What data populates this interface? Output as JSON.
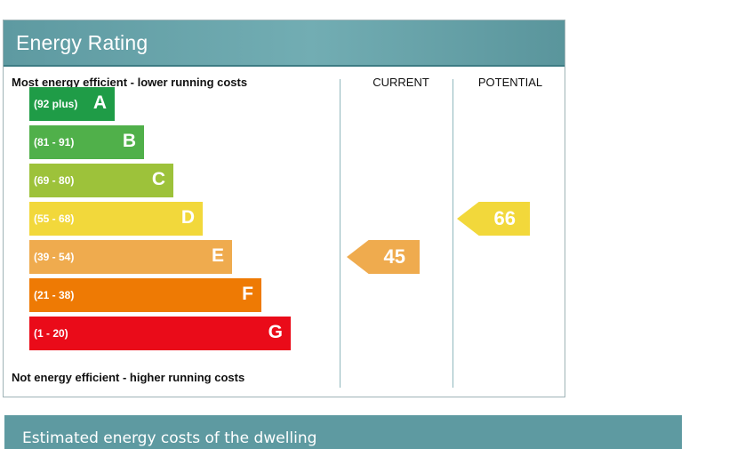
{
  "panel": {
    "title": "Energy Rating",
    "top_caption": "Most energy efficient - lower running costs",
    "bottom_caption": "Not energy efficient - higher running costs",
    "col_current": "CURRENT",
    "col_potential": "POTENTIAL"
  },
  "costs_section": {
    "title": "Estimated energy costs of the dwelling"
  },
  "colors": {
    "header": "#5e9aa1",
    "A": "#1f9c47",
    "B": "#50b04a",
    "C": "#9dc23a",
    "D": "#f2d83b",
    "E": "#efab4e",
    "F": "#ee7a04",
    "G": "#ea0b19"
  },
  "chart_data": {
    "type": "energy-rating",
    "bands": [
      {
        "range": "(92 plus)",
        "letter": "A",
        "min": 92,
        "max": null,
        "color": "#1f9c47"
      },
      {
        "range": "(81 - 91)",
        "letter": "B",
        "min": 81,
        "max": 91,
        "color": "#50b04a"
      },
      {
        "range": "(69 - 80)",
        "letter": "C",
        "min": 69,
        "max": 80,
        "color": "#9dc23a"
      },
      {
        "range": "(55 - 68)",
        "letter": "D",
        "min": 55,
        "max": 68,
        "color": "#f2d83b"
      },
      {
        "range": "(39 - 54)",
        "letter": "E",
        "min": 39,
        "max": 54,
        "color": "#efab4e"
      },
      {
        "range": "(21 - 38)",
        "letter": "F",
        "min": 21,
        "max": 38,
        "color": "#ee7a04"
      },
      {
        "range": "(1 - 20)",
        "letter": "G",
        "min": 1,
        "max": 20,
        "color": "#ea0b19"
      }
    ],
    "current": {
      "value": 45,
      "band": "E"
    },
    "potential": {
      "value": 66,
      "band": "D"
    }
  }
}
